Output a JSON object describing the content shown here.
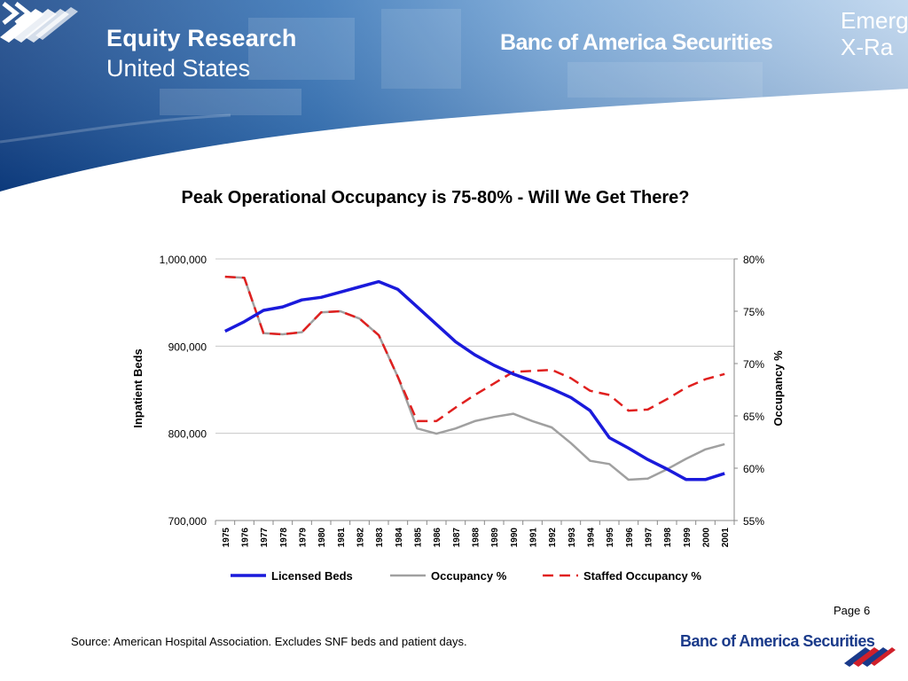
{
  "header": {
    "title": "Equity Research",
    "subtitle": "United States",
    "brand": "Banc of America Securities",
    "corner_text": "Emerg\nX-Ra"
  },
  "chart_title": "Peak Operational Occupancy is 75-80% - Will We Get There?",
  "chart_data": {
    "type": "line",
    "title": "Peak Operational Occupancy is 75-80% - Will We Get There?",
    "x": [
      "1975",
      "1976",
      "1977",
      "1978",
      "1979",
      "1980",
      "1981",
      "1982",
      "1983",
      "1984",
      "1985",
      "1986",
      "1987",
      "1988",
      "1989",
      "1990",
      "1991",
      "1992",
      "1993",
      "1994",
      "1995",
      "1996",
      "1997",
      "1998",
      "1999",
      "2000",
      "2001"
    ],
    "y_left_label": "Inpatient Beds",
    "y_left_lim": [
      700000,
      1000000
    ],
    "y_left_ticks": [
      "700,000",
      "800,000",
      "900,000",
      "1,000,000"
    ],
    "y_right_label": "Occupancy %",
    "y_right_lim": [
      55,
      80
    ],
    "y_right_ticks": [
      "55%",
      "60%",
      "65%",
      "70%",
      "75%",
      "80%"
    ],
    "grid": true,
    "legend_position": "bottom",
    "series": [
      {
        "name": "Licensed Beds",
        "axis": "left",
        "color": "#1a1adb",
        "style": "solid",
        "values": [
          917000,
          928000,
          941000,
          945000,
          953000,
          956000,
          962000,
          968000,
          974000,
          965000,
          945000,
          925000,
          905000,
          890000,
          878000,
          868000,
          860000,
          851000,
          841000,
          826000,
          795000,
          783000,
          770000,
          759000,
          747000,
          747000,
          754000
        ]
      },
      {
        "name": "Occupancy %",
        "axis": "right",
        "color": "#a0a0a0",
        "style": "solid",
        "values": [
          78.3,
          78.2,
          72.9,
          72.8,
          73.0,
          74.9,
          75.0,
          74.3,
          72.7,
          68.7,
          63.8,
          63.3,
          63.8,
          64.5,
          64.9,
          65.2,
          64.5,
          63.9,
          62.4,
          60.7,
          60.4,
          58.9,
          59.0,
          59.9,
          60.9,
          61.8,
          62.3
        ]
      },
      {
        "name": "Staffed Occupancy %",
        "axis": "right",
        "color": "#e0201f",
        "style": "dashed",
        "values": [
          78.3,
          78.2,
          72.9,
          72.8,
          73.0,
          74.9,
          75.0,
          74.3,
          72.7,
          68.7,
          64.5,
          64.5,
          65.8,
          67.0,
          68.1,
          69.2,
          69.3,
          69.4,
          68.6,
          67.4,
          67.0,
          65.5,
          65.6,
          66.6,
          67.7,
          68.5,
          69.0
        ]
      }
    ]
  },
  "footer": {
    "page": "Page 6",
    "source": "Source: American Hospital Association. Excludes SNF beds and patient days.",
    "brand": "Banc of America Securities"
  },
  "colors": {
    "banner_dark": "#0d3d82",
    "banner_light": "#9dbfe4",
    "brand_navy": "#1a3a8a",
    "brand_red": "#d0202a"
  }
}
